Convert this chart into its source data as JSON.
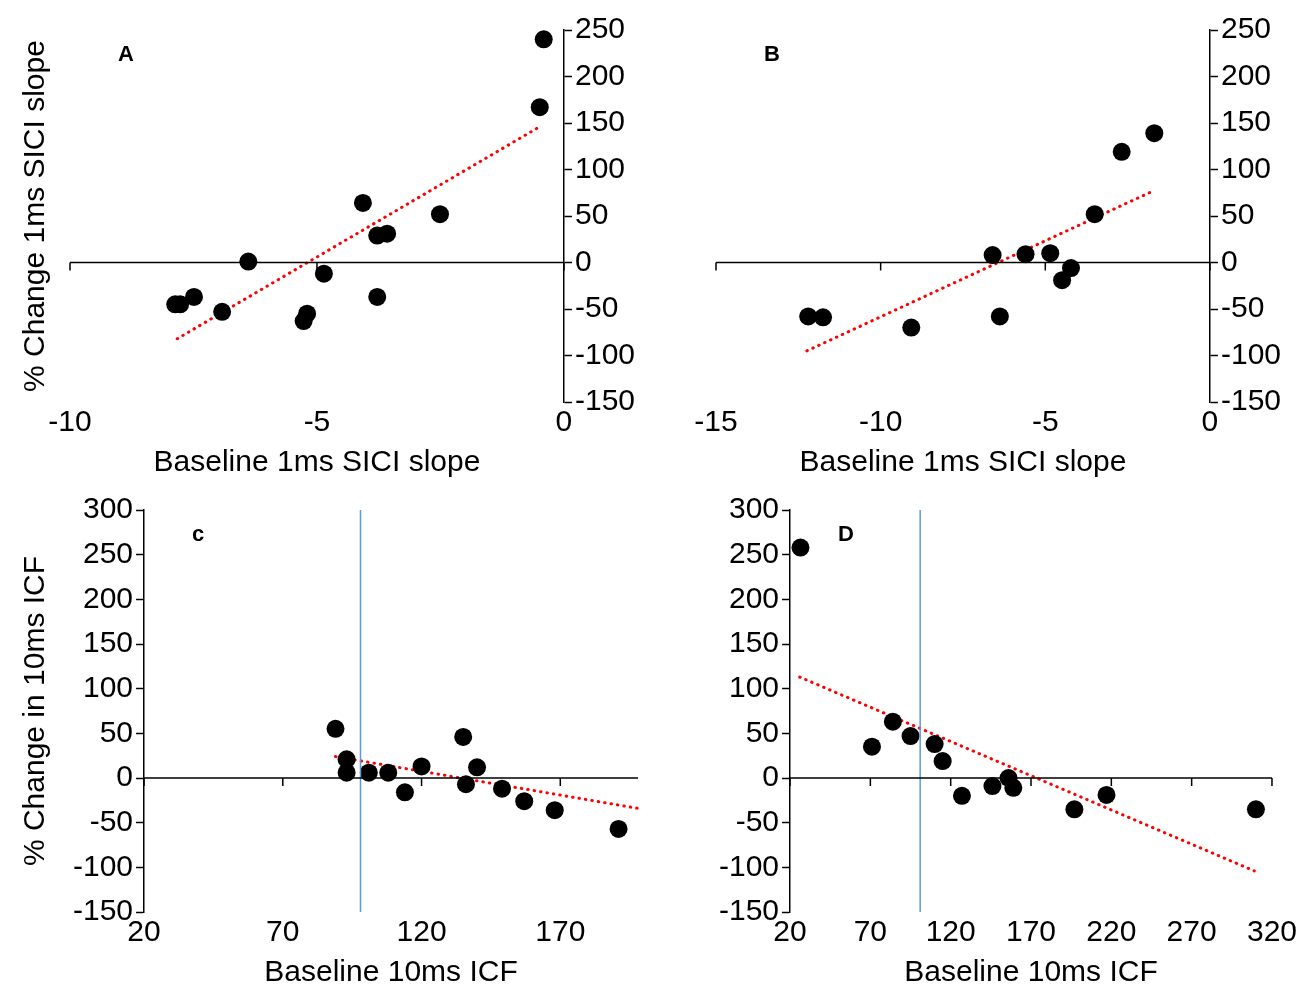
{
  "chart_data": [
    {
      "type": "scatter",
      "title": "A",
      "xlabel": "Baseline 1ms SICI slope",
      "ylabel": "% Change 1ms SICI slope",
      "xlim": [
        -10,
        0
      ],
      "xticks": [
        -10,
        -5,
        0
      ],
      "ylim": [
        -150,
        250
      ],
      "yticks": [
        -150,
        -100,
        -50,
        0,
        50,
        100,
        150,
        200,
        250
      ],
      "marker": "circle",
      "series": [
        {
          "color": "#000000",
          "x": [
            -7.87,
            -7.77,
            -7.49,
            -6.92,
            -6.39,
            -5.27,
            -5.2,
            -4.86,
            -4.07,
            -3.78,
            -3.78,
            -3.58,
            -2.51,
            -0.49,
            -0.41
          ],
          "values": [
            -45,
            -45,
            -37,
            -53,
            1,
            -63,
            -55,
            -12,
            64,
            29,
            -37,
            31,
            52,
            167,
            240
          ]
        },
        {
          "type": "line",
          "color": "#ff0000",
          "line_style": "dotted",
          "marker": "none",
          "x": [
            -7.83,
            -0.46
          ],
          "values": [
            -82,
            147
          ]
        }
      ]
    },
    {
      "type": "scatter",
      "title": "B",
      "xlabel": "Baseline 1ms SICI slope",
      "xlim": [
        -15,
        0
      ],
      "xticks": [
        -15,
        -10,
        -5,
        0
      ],
      "ylim": [
        -150,
        250
      ],
      "yticks": [
        -150,
        -100,
        -50,
        0,
        50,
        100,
        150,
        200,
        250
      ],
      "marker": "circle",
      "series": [
        {
          "color": "#000000",
          "x": [
            -12.2,
            -11.75,
            -9.07,
            -6.6,
            -6.38,
            -5.6,
            -4.85,
            -4.49,
            -4.22,
            -3.5,
            -2.68,
            -1.69
          ],
          "values": [
            -58,
            -59,
            -70,
            8,
            -58,
            9,
            10,
            -19,
            -6,
            52,
            119,
            139
          ]
        },
        {
          "type": "line",
          "color": "#ff0000",
          "line_style": "dotted",
          "marker": "none",
          "x": [
            -12.24,
            -1.72
          ],
          "values": [
            -95,
            77
          ]
        }
      ]
    },
    {
      "type": "scatter",
      "title": "c",
      "xlabel": "Baseline 10ms ICF",
      "ylabel": "% Change in 10ms ICF",
      "xlim": [
        20,
        198
      ],
      "xticks": [
        20,
        70,
        120,
        170
      ],
      "ylim": [
        -150,
        300
      ],
      "yticks": [
        -150,
        -100,
        -50,
        0,
        50,
        100,
        150,
        200,
        250,
        300
      ],
      "marker": "circle",
      "ref_lines": [
        {
          "axis": "x",
          "value": 98,
          "color": "#5b9bd5"
        }
      ],
      "series": [
        {
          "color": "#000000",
          "x": [
            89,
            93,
            93,
            101,
            108,
            114,
            120,
            135,
            136,
            140,
            149,
            157,
            168,
            191
          ],
          "values": [
            55,
            21,
            6,
            6,
            6,
            -16,
            13,
            46,
            -7,
            12,
            -12,
            -26,
            -36,
            -57
          ]
        },
        {
          "type": "line",
          "color": "#ff0000",
          "line_style": "dotted",
          "marker": "none",
          "x": [
            89,
            198
          ],
          "values": [
            24,
            -34
          ]
        }
      ]
    },
    {
      "type": "scatter",
      "title": "D",
      "xlabel": "Baseline 10ms ICF",
      "xlim": [
        20,
        320
      ],
      "xticks": [
        20,
        70,
        120,
        170,
        220,
        270,
        320
      ],
      "ylim": [
        -150,
        300
      ],
      "yticks": [
        -150,
        -100,
        -50,
        0,
        50,
        100,
        150,
        200,
        250,
        300
      ],
      "marker": "circle",
      "ref_lines": [
        {
          "axis": "x",
          "value": 101,
          "color": "#5b9bd5"
        }
      ],
      "series": [
        {
          "color": "#000000",
          "x": [
            26.5,
            71,
            84,
            95,
            110,
            115,
            127,
            146,
            156,
            159,
            197,
            217,
            310
          ],
          "values": [
            258,
            35,
            63,
            47,
            38,
            19,
            -20,
            -9,
            0,
            -11,
            -35,
            -19,
            -35
          ]
        },
        {
          "type": "line",
          "color": "#ff0000",
          "line_style": "dotted",
          "marker": "none",
          "x": [
            26,
            309
          ],
          "values": [
            113,
            -104
          ]
        }
      ]
    }
  ]
}
